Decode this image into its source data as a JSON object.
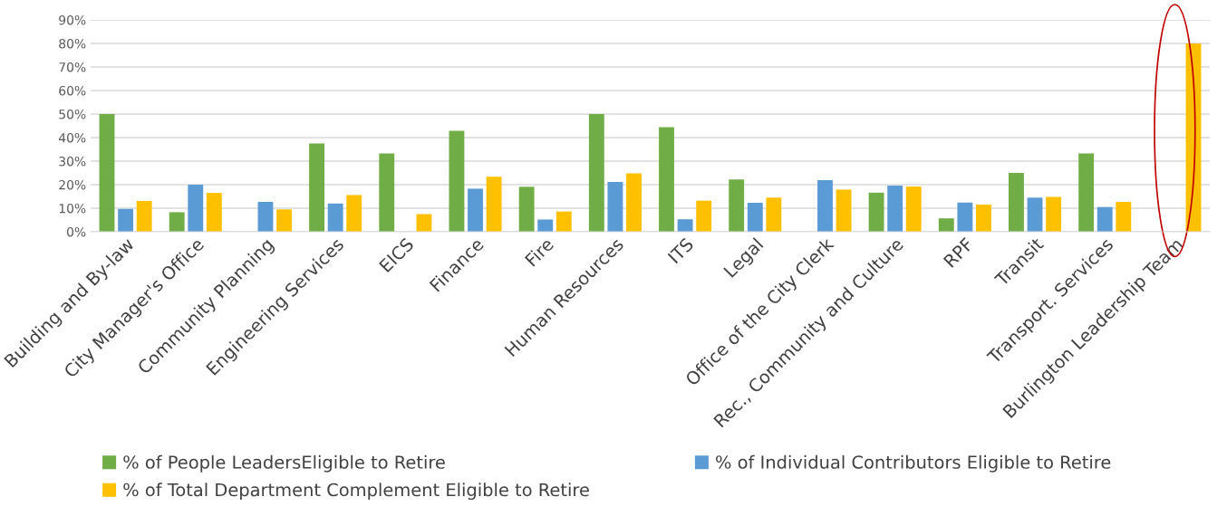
{
  "chart_data": {
    "type": "bar",
    "categories": [
      "Building and By-law",
      "City Manager's Office",
      "Community Planning",
      "Engineering Services",
      "EICS",
      "Finance",
      "Fire",
      "Human Resources",
      "ITS",
      "Legal",
      "Office of the City Clerk",
      "Rec., Community and Culture",
      "RPF",
      "Transit",
      "Transport. Services",
      "Burlington Leadership Team"
    ],
    "series": [
      {
        "name": "% of People LeadersEligible to Retire",
        "color": "#70ad47",
        "values": [
          50,
          8.3,
          null,
          37.5,
          33.3,
          42.9,
          19.1,
          50,
          44.4,
          22.2,
          null,
          16.6,
          5.7,
          25,
          33.3,
          null
        ]
      },
      {
        "name": "% of Individual Contributors Eligible to Retire",
        "color": "#5b9bd5",
        "values": [
          9.7,
          20,
          12.7,
          12,
          null,
          18.3,
          5.2,
          21.2,
          5.3,
          12.3,
          21.9,
          19.6,
          12.4,
          14.5,
          10.5,
          null
        ]
      },
      {
        "name": "% of Total Department Complement Eligible to Retire",
        "color": "#ffc000",
        "values": [
          13.1,
          16.5,
          9.5,
          15.6,
          7.5,
          23.4,
          8.6,
          24.8,
          13.2,
          14.5,
          17.9,
          19.2,
          11.5,
          14.8,
          12.7,
          80
        ]
      }
    ],
    "ylim": [
      0,
      90
    ],
    "yticks": [
      {
        "value": 0,
        "label": "0%"
      },
      {
        "value": 10,
        "label": "10%"
      },
      {
        "value": 20,
        "label": "20%"
      },
      {
        "value": 30,
        "label": "30%"
      },
      {
        "value": 40,
        "label": "40%"
      },
      {
        "value": 50,
        "label": "50%"
      },
      {
        "value": 60,
        "label": "60%"
      },
      {
        "value": 70,
        "label": "70%"
      },
      {
        "value": 80,
        "label": "80%"
      },
      {
        "value": 90,
        "label": "90%"
      }
    ],
    "grid": "y",
    "legend": "bottom"
  }
}
